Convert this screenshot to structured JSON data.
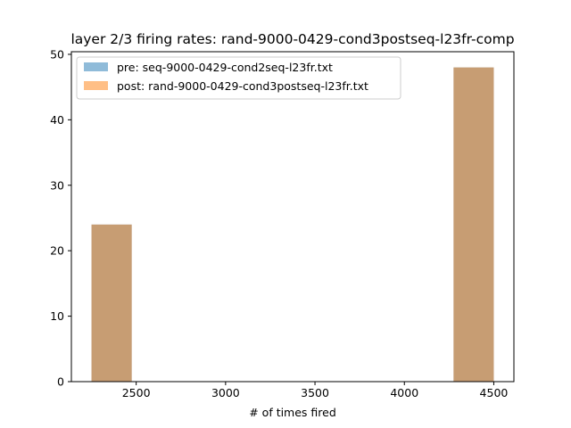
{
  "chart_data": {
    "type": "bar",
    "title": "layer 2/3 firing rates: rand-9000-0429-cond3postseq-l23fr-comp",
    "xlabel": "# of times fired",
    "ylabel": "",
    "xlim": [
      2137.5,
      4612.5
    ],
    "ylim": [
      0,
      50.4
    ],
    "grid": false,
    "legend_position": "top-left",
    "x_ticks": [
      "2500",
      "3000",
      "3500",
      "4000",
      "4500"
    ],
    "y_ticks": [
      "0",
      "10",
      "20",
      "30",
      "40",
      "50"
    ],
    "series": [
      {
        "name": "pre: seq-9000-0429-cond2seq-l23fr.txt",
        "color": "#1f77b4",
        "opacity": 0.5,
        "bins": [
          {
            "x0": 2250,
            "x1": 2475,
            "count": 24
          },
          {
            "x0": 4275,
            "x1": 4500,
            "count": 48
          }
        ]
      },
      {
        "name": "post: rand-9000-0429-cond3postseq-l23fr.txt",
        "color": "#ff7f0e",
        "opacity": 0.5,
        "bins": [
          {
            "x0": 2250,
            "x1": 2475,
            "count": 24
          },
          {
            "x0": 4275,
            "x1": 4500,
            "count": 48
          }
        ]
      }
    ]
  }
}
